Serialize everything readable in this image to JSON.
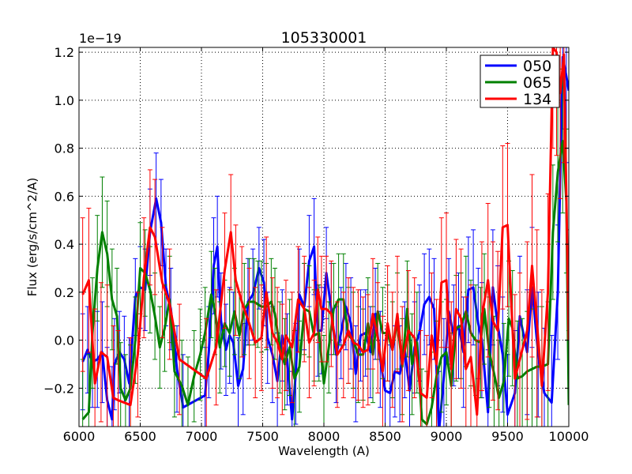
{
  "chart_data": {
    "type": "line",
    "title": "105330001",
    "xlabel": "Wavelength (A)",
    "ylabel": "Flux (erg/s/cm^2/A)",
    "offset_text": "1e−19",
    "xlim": [
      6000,
      10000
    ],
    "ylim": [
      -0.36,
      1.22
    ],
    "x_ticks": [
      6000,
      6500,
      7000,
      7500,
      8000,
      8500,
      9000,
      9500,
      10000
    ],
    "x_tick_labels": [
      "6000",
      "6500",
      "7000",
      "7500",
      "8000",
      "8500",
      "9000",
      "9500",
      "10000"
    ],
    "y_ticks": [
      -0.2,
      0.0,
      0.2,
      0.4,
      0.6,
      0.8,
      1.0,
      1.2
    ],
    "y_tick_labels": [
      "−0.2",
      "0.0",
      "0.2",
      "0.4",
      "0.6",
      "0.8",
      "1.0",
      "1.2"
    ],
    "grid": true,
    "legend_position": "top-right",
    "series": [
      {
        "name": "050",
        "color": "#0000ff",
        "x": [
          6030,
          6070,
          6110,
          6150,
          6190,
          6230,
          6270,
          6290,
          6330,
          6370,
          6410,
          6460,
          6500,
          6540,
          6580,
          6630,
          6670,
          6710,
          6750,
          6800,
          6850,
          7030,
          7060,
          7100,
          7130,
          7160,
          7200,
          7230,
          7260,
          7300,
          7340,
          7380,
          7420,
          7470,
          7510,
          7540,
          7580,
          7620,
          7660,
          7700,
          7740,
          7770,
          7800,
          7840,
          7880,
          7920,
          7950,
          7980,
          8020,
          8060,
          8100,
          8140,
          8180,
          8220,
          8260,
          8300,
          8340,
          8380,
          8420,
          8460,
          8500,
          8540,
          8580,
          8620,
          8660,
          8700,
          8740,
          8780,
          8820,
          8860,
          8900,
          8940,
          8980,
          9020,
          9060,
          9100,
          9140,
          9180,
          9220,
          9260,
          9290,
          9340,
          9380,
          9420,
          9460,
          9500,
          9560,
          9600,
          9660,
          9700,
          9750,
          9800,
          9860,
          9910,
          9950,
          9980,
          10000
        ],
        "y": [
          -0.09,
          -0.04,
          -0.09,
          -0.08,
          -0.05,
          -0.25,
          -0.33,
          -0.1,
          -0.05,
          -0.08,
          -0.18,
          0.18,
          0.22,
          0.21,
          0.45,
          0.59,
          0.49,
          0.22,
          0.13,
          -0.12,
          -0.28,
          -0.23,
          -0.05,
          0.31,
          0.39,
          0.08,
          -0.04,
          0.02,
          -0.01,
          -0.19,
          -0.12,
          0.16,
          0.19,
          0.3,
          0.24,
          0.01,
          -0.06,
          -0.17,
          0.02,
          -0.08,
          -0.33,
          -0.14,
          0.19,
          0.14,
          0.33,
          0.39,
          0.04,
          0.04,
          0.28,
          0.13,
          -0.06,
          0.03,
          0.14,
          0.07,
          -0.14,
          0.02,
          0.03,
          -0.05,
          0.11,
          -0.08,
          -0.21,
          -0.22,
          -0.13,
          -0.14,
          -0.04,
          -0.21,
          -0.03,
          0.03,
          0.15,
          0.18,
          0.13,
          -0.38,
          -0.15,
          0.12,
          0.02,
          0.06,
          -0.05,
          0.21,
          0.22,
          0.07,
          0.0,
          -0.3,
          0.22,
          0.06,
          -0.06,
          -0.31,
          -0.22,
          0.1,
          -0.05,
          0.22,
          -0.06,
          -0.22,
          -0.26,
          0.2,
          1.18,
          1.1,
          1.04
        ],
        "yerr": [
          0.2,
          0.18,
          0.19,
          0.2,
          0.21,
          0.22,
          0.22,
          0.19,
          0.17,
          0.18,
          0.19,
          0.16,
          0.17,
          0.17,
          0.18,
          0.19,
          0.18,
          0.16,
          0.17,
          0.18,
          0.22,
          0.2,
          0.19,
          0.2,
          0.21,
          0.2,
          0.19,
          0.2,
          0.21,
          0.2,
          0.19,
          0.18,
          0.19,
          0.17,
          0.18,
          0.19,
          0.2,
          0.2,
          0.19,
          0.19,
          0.2,
          0.21,
          0.19,
          0.18,
          0.19,
          0.2,
          0.19,
          0.18,
          0.19,
          0.19,
          0.2,
          0.19,
          0.18,
          0.19,
          0.2,
          0.19,
          0.18,
          0.19,
          0.19,
          0.2,
          0.21,
          0.2,
          0.19,
          0.2,
          0.2,
          0.21,
          0.19,
          0.2,
          0.21,
          0.2,
          0.21,
          0.25,
          0.24,
          0.22,
          0.21,
          0.22,
          0.23,
          0.22,
          0.24,
          0.23,
          0.24,
          0.26,
          0.24,
          0.25,
          0.24,
          0.25,
          0.26,
          0.25,
          0.26,
          0.25,
          0.26,
          0.27,
          0.28,
          0.28,
          0.3,
          0.3,
          0.3
        ]
      },
      {
        "name": "065",
        "color": "#008000",
        "x": [
          6030,
          6080,
          6110,
          6150,
          6190,
          6230,
          6270,
          6310,
          6340,
          6380,
          6420,
          6460,
          6500,
          6540,
          6580,
          6620,
          6660,
          6700,
          6740,
          6780,
          6840,
          6890,
          6940,
          6990,
          7030,
          7080,
          7110,
          7150,
          7190,
          7230,
          7270,
          7310,
          7350,
          7390,
          7430,
          7460,
          7490,
          7530,
          7570,
          7600,
          7640,
          7680,
          7720,
          7760,
          7800,
          7840,
          7880,
          7920,
          7960,
          8000,
          8040,
          8080,
          8120,
          8160,
          8200,
          8240,
          8280,
          8320,
          8360,
          8400,
          8440,
          8480,
          8520,
          8560,
          8600,
          8640,
          8680,
          8720,
          8760,
          8800,
          8840,
          8880,
          8920,
          8960,
          9000,
          9040,
          9080,
          9120,
          9160,
          9200,
          9240,
          9280,
          9310,
          9350,
          9390,
          9430,
          9470,
          9510,
          9540,
          9580,
          9620,
          9660,
          9700,
          9740,
          9780,
          9830,
          9870,
          9910,
          9950,
          9980,
          10000
        ],
        "y": [
          -0.33,
          -0.3,
          0.03,
          0.3,
          0.45,
          0.36,
          0.17,
          0.1,
          -0.2,
          -0.25,
          -0.2,
          0.0,
          0.3,
          0.28,
          0.21,
          0.1,
          -0.03,
          0.05,
          0.17,
          -0.13,
          -0.19,
          -0.27,
          -0.15,
          -0.06,
          0.03,
          0.19,
          0.12,
          -0.03,
          0.07,
          0.03,
          0.12,
          0.02,
          0.13,
          0.16,
          0.16,
          0.15,
          0.14,
          0.14,
          0.16,
          0.11,
          -0.03,
          -0.1,
          -0.03,
          -0.16,
          -0.11,
          0.13,
          0.12,
          0.02,
          0.03,
          -0.18,
          -0.03,
          0.13,
          0.17,
          0.17,
          0.02,
          0.0,
          -0.06,
          -0.06,
          0.07,
          -0.06,
          0.12,
          0.03,
          0.03,
          -0.04,
          0.08,
          -0.11,
          0.13,
          -0.1,
          -0.01,
          -0.33,
          -0.35,
          -0.28,
          -0.15,
          -0.07,
          -0.05,
          -0.19,
          0.05,
          0.06,
          0.12,
          0.03,
          0.0,
          -0.01,
          0.13,
          -0.05,
          -0.14,
          -0.24,
          -0.17,
          0.09,
          0.05,
          -0.16,
          -0.15,
          -0.13,
          -0.12,
          -0.11,
          -0.11,
          -0.1,
          0.45,
          0.7,
          0.83,
          0.58,
          -0.27
        ],
        "yerr": [
          0.25,
          0.24,
          0.23,
          0.22,
          0.23,
          0.22,
          0.21,
          0.2,
          0.19,
          0.19,
          0.18,
          0.18,
          0.19,
          0.18,
          0.18,
          0.18,
          0.17,
          0.18,
          0.18,
          0.19,
          0.19,
          0.2,
          0.19,
          0.19,
          0.19,
          0.18,
          0.18,
          0.19,
          0.18,
          0.18,
          0.18,
          0.18,
          0.19,
          0.18,
          0.18,
          0.18,
          0.19,
          0.18,
          0.18,
          0.19,
          0.19,
          0.19,
          0.2,
          0.2,
          0.19,
          0.19,
          0.19,
          0.19,
          0.2,
          0.2,
          0.19,
          0.19,
          0.19,
          0.19,
          0.2,
          0.2,
          0.2,
          0.19,
          0.19,
          0.2,
          0.2,
          0.19,
          0.2,
          0.2,
          0.2,
          0.2,
          0.2,
          0.21,
          0.21,
          0.21,
          0.22,
          0.23,
          0.23,
          0.23,
          0.22,
          0.22,
          0.22,
          0.22,
          0.23,
          0.22,
          0.23,
          0.23,
          0.23,
          0.23,
          0.24,
          0.24,
          0.24,
          0.24,
          0.24,
          0.24,
          0.24,
          0.25,
          0.25,
          0.25,
          0.25,
          0.26,
          0.28,
          0.29,
          0.3,
          0.3,
          0.31
        ]
      },
      {
        "name": "134",
        "color": "#ff0000",
        "x": [
          6030,
          6080,
          6130,
          6180,
          6230,
          6280,
          6320,
          6420,
          6480,
          6530,
          6580,
          6620,
          6680,
          6740,
          6820,
          7040,
          7120,
          7190,
          7240,
          7280,
          7330,
          7390,
          7440,
          7490,
          7530,
          7580,
          7620,
          7660,
          7690,
          7740,
          7790,
          7840,
          7880,
          7920,
          7950,
          7980,
          8020,
          8060,
          8110,
          8160,
          8200,
          8240,
          8280,
          8320,
          8360,
          8400,
          8440,
          8480,
          8520,
          8560,
          8600,
          8640,
          8690,
          8740,
          8790,
          8840,
          8880,
          8920,
          8960,
          9000,
          9040,
          9080,
          9120,
          9160,
          9200,
          9250,
          9290,
          9340,
          9380,
          9420,
          9460,
          9500,
          9560,
          9600,
          9660,
          9700,
          9740,
          9780,
          9830,
          9870,
          9900,
          9930,
          9960,
          10000
        ],
        "y": [
          0.19,
          0.25,
          -0.18,
          -0.05,
          -0.07,
          -0.24,
          -0.25,
          -0.27,
          -0.06,
          0.26,
          0.47,
          0.43,
          0.24,
          0.15,
          -0.08,
          -0.16,
          -0.03,
          0.29,
          0.45,
          0.25,
          0.16,
          0.07,
          -0.01,
          0.01,
          0.2,
          0.03,
          -0.01,
          -0.08,
          0.02,
          -0.03,
          0.17,
          0.13,
          -0.01,
          0.03,
          0.21,
          0.13,
          0.13,
          0.11,
          -0.06,
          -0.02,
          0.04,
          -0.01,
          -0.02,
          -0.05,
          -0.04,
          0.11,
          0.01,
          -0.13,
          0.07,
          -0.04,
          0.11,
          -0.1,
          0.04,
          0.01,
          -0.22,
          -0.24,
          0.02,
          -0.1,
          0.24,
          0.25,
          -0.12,
          0.13,
          0.09,
          -0.12,
          -0.07,
          -0.31,
          0.1,
          0.25,
          0.08,
          0.04,
          0.47,
          0.48,
          -0.16,
          -0.08,
          0.04,
          0.31,
          0.07,
          -0.19,
          0.2,
          1.22,
          1.2,
          1.03,
          1.19,
          0.0
        ],
        "yerr": [
          0.32,
          0.3,
          0.31,
          0.29,
          0.3,
          0.3,
          0.29,
          0.28,
          0.26,
          0.25,
          0.24,
          0.24,
          0.23,
          0.23,
          0.23,
          0.25,
          0.24,
          0.24,
          0.24,
          0.23,
          0.23,
          0.23,
          0.23,
          0.22,
          0.23,
          0.23,
          0.23,
          0.23,
          0.23,
          0.23,
          0.22,
          0.22,
          0.23,
          0.22,
          0.22,
          0.22,
          0.22,
          0.22,
          0.22,
          0.22,
          0.22,
          0.23,
          0.23,
          0.23,
          0.23,
          0.23,
          0.23,
          0.23,
          0.24,
          0.24,
          0.24,
          0.24,
          0.25,
          0.25,
          0.26,
          0.26,
          0.26,
          0.27,
          0.27,
          0.28,
          0.28,
          0.29,
          0.29,
          0.3,
          0.3,
          0.31,
          0.31,
          0.32,
          0.33,
          0.33,
          0.34,
          0.34,
          0.35,
          0.36,
          0.37,
          0.38,
          0.39,
          0.4,
          0.41,
          0.42,
          0.43,
          0.44,
          0.45,
          0.46
        ]
      }
    ]
  }
}
